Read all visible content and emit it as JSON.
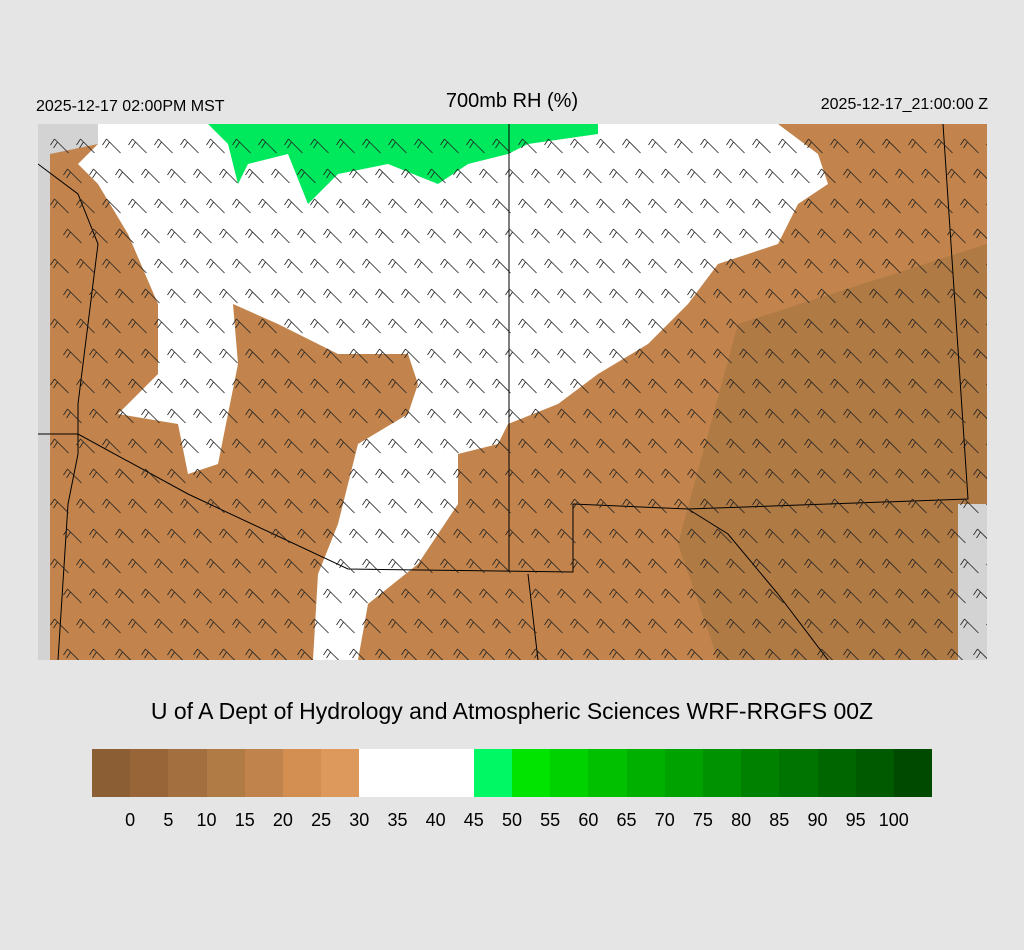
{
  "header": {
    "title": "700mb RH (%)",
    "local_time": "2025-12-17 02:00PM MST",
    "valid_time": "2025-12-17_21:00:00 Z"
  },
  "credit": "U of A Dept of Hydrology and Atmospheric Sciences WRF-RRGFS 00Z",
  "colorbar": {
    "colors": [
      "#8b5e34",
      "#976538",
      "#a36f3f",
      "#b07b45",
      "#c0834c",
      "#d28f51",
      "#dd995b",
      "#ffffff",
      "#ffffff",
      "#ffffff",
      "#00f864",
      "#00e400",
      "#00d200",
      "#00c000",
      "#00b000",
      "#00a200",
      "#009200",
      "#008200",
      "#007400",
      "#006600",
      "#005a00",
      "#004a00"
    ],
    "labels": [
      "0",
      "5",
      "10",
      "15",
      "20",
      "25",
      "30",
      "35",
      "40",
      "45",
      "50",
      "55",
      "60",
      "65",
      "70",
      "75",
      "80",
      "85",
      "90",
      "95",
      "100"
    ]
  }
}
